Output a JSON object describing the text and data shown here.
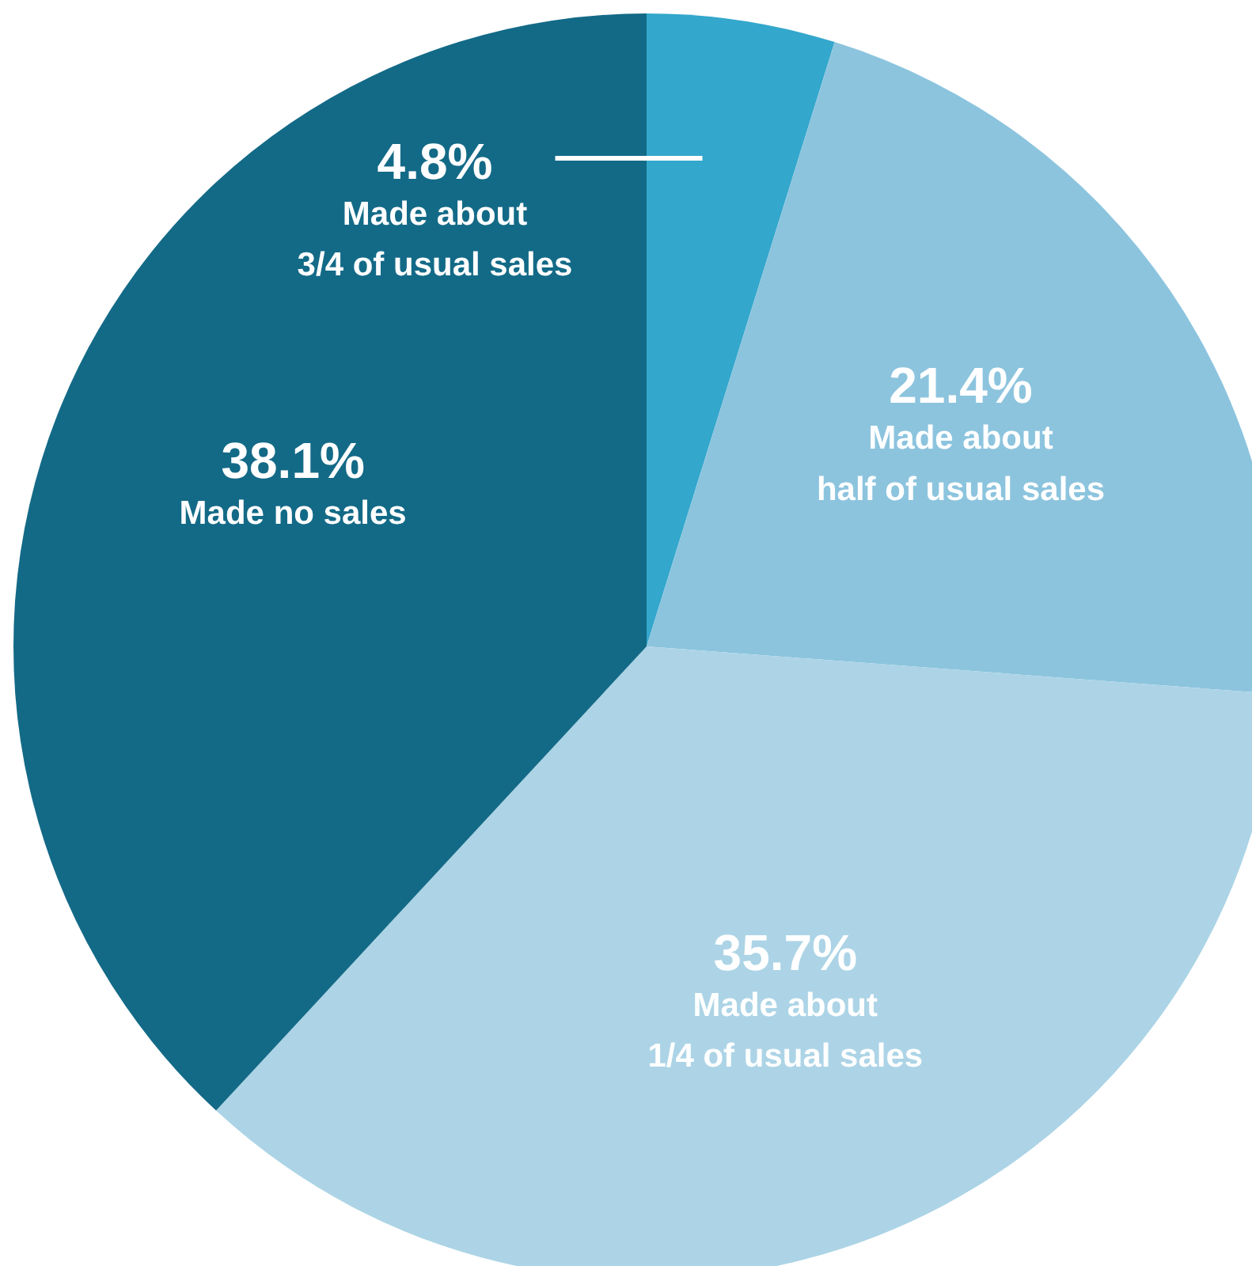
{
  "chart_data": {
    "type": "pie",
    "categories": [
      "Made about\n3/4 of usual sales",
      "Made about\nhalf of usual sales",
      "Made about\n1/4 of usual sales",
      "Made no sales"
    ],
    "values": [
      4.8,
      21.4,
      35.7,
      38.1
    ],
    "colors": [
      "#33a7cc",
      "#8cc4de",
      "#acd4e6",
      "#136a87"
    ],
    "value_labels": [
      "4.8%",
      "21.4%",
      "35.7%",
      "38.1%"
    ]
  }
}
